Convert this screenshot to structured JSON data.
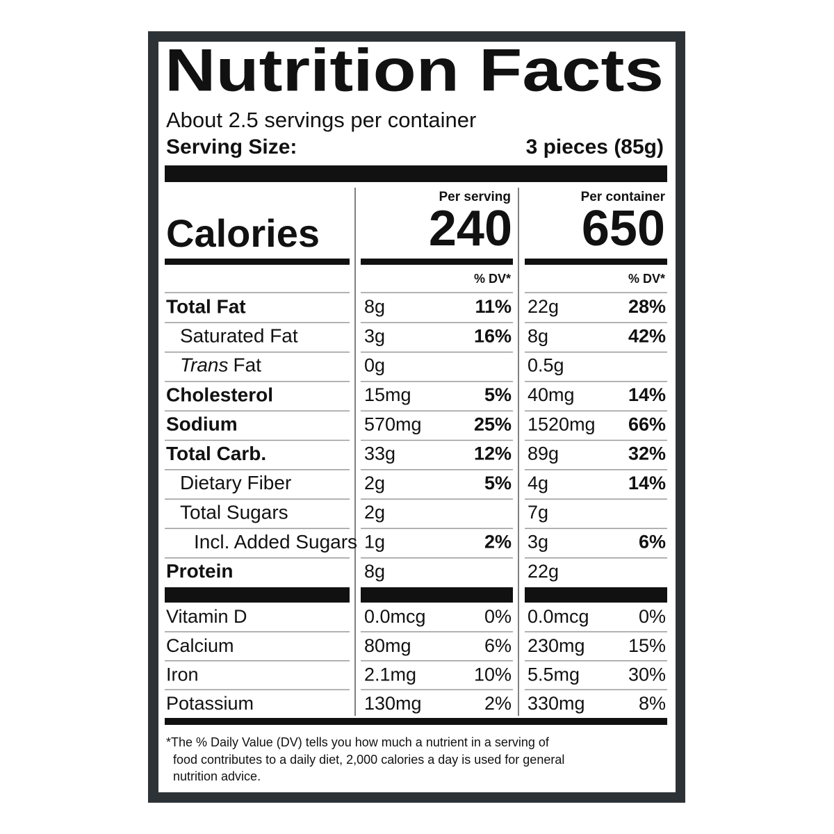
{
  "header": {
    "title": "Nutrition Facts",
    "servings": "About 2.5 servings per container",
    "serving_size_label": "Serving Size:",
    "serving_size_value": "3 pieces (85g)"
  },
  "columns": {
    "per_serving": "Per serving",
    "per_container": "Per container",
    "dv": "% DV*"
  },
  "calories": {
    "label": "Calories",
    "per_serving": 240,
    "per_container": 650
  },
  "nutrients": [
    {
      "name": "Total Fat",
      "serving": "8g",
      "serving_dv": "11%",
      "container": "22g",
      "container_dv": "28%"
    },
    {
      "name": "Saturated Fat",
      "serving": "3g",
      "serving_dv": "16%",
      "container": "8g",
      "container_dv": "42%"
    },
    {
      "name_italic": "Trans",
      "name": "Fat",
      "serving": "0g",
      "container": "0.5g"
    },
    {
      "name": "Cholesterol",
      "serving": "15mg",
      "serving_dv": "5%",
      "container": "40mg",
      "container_dv": "14%"
    },
    {
      "name": "Sodium",
      "serving": "570mg",
      "serving_dv": "25%",
      "container": "1520mg",
      "container_dv": "66%"
    },
    {
      "name": "Total Carb.",
      "serving": "33g",
      "serving_dv": "12%",
      "container": "89g",
      "container_dv": "32%"
    },
    {
      "name": "Dietary Fiber",
      "serving": "2g",
      "serving_dv": "5%",
      "container": "4g",
      "container_dv": "14%"
    },
    {
      "name": "Total Sugars",
      "serving": "2g",
      "container": "7g"
    },
    {
      "name": "Incl. Added Sugars",
      "serving": "1g",
      "serving_dv": "2%",
      "container": "3g",
      "container_dv": "6%"
    },
    {
      "name": "Protein",
      "serving": "8g",
      "container": "22g"
    }
  ],
  "vitamins": [
    {
      "name": "Vitamin D",
      "serving": "0.0mcg",
      "serving_dv": "0%",
      "container": "0.0mcg",
      "container_dv": "0%"
    },
    {
      "name": "Calcium",
      "serving": "80mg",
      "serving_dv": "6%",
      "container": "230mg",
      "container_dv": "15%"
    },
    {
      "name": "Iron",
      "serving": "2.1mg",
      "serving_dv": "10%",
      "container": "5.5mg",
      "container_dv": "30%"
    },
    {
      "name": "Potassium",
      "serving": "130mg",
      "serving_dv": "2%",
      "container": "330mg",
      "container_dv": "8%"
    }
  ],
  "footnote": [
    "*The % Daily Value (DV) tells you how much a nutrient in a serving of",
    "food contributes to a daily diet, 2,000 calories a day is used for general",
    "nutrition advice."
  ]
}
